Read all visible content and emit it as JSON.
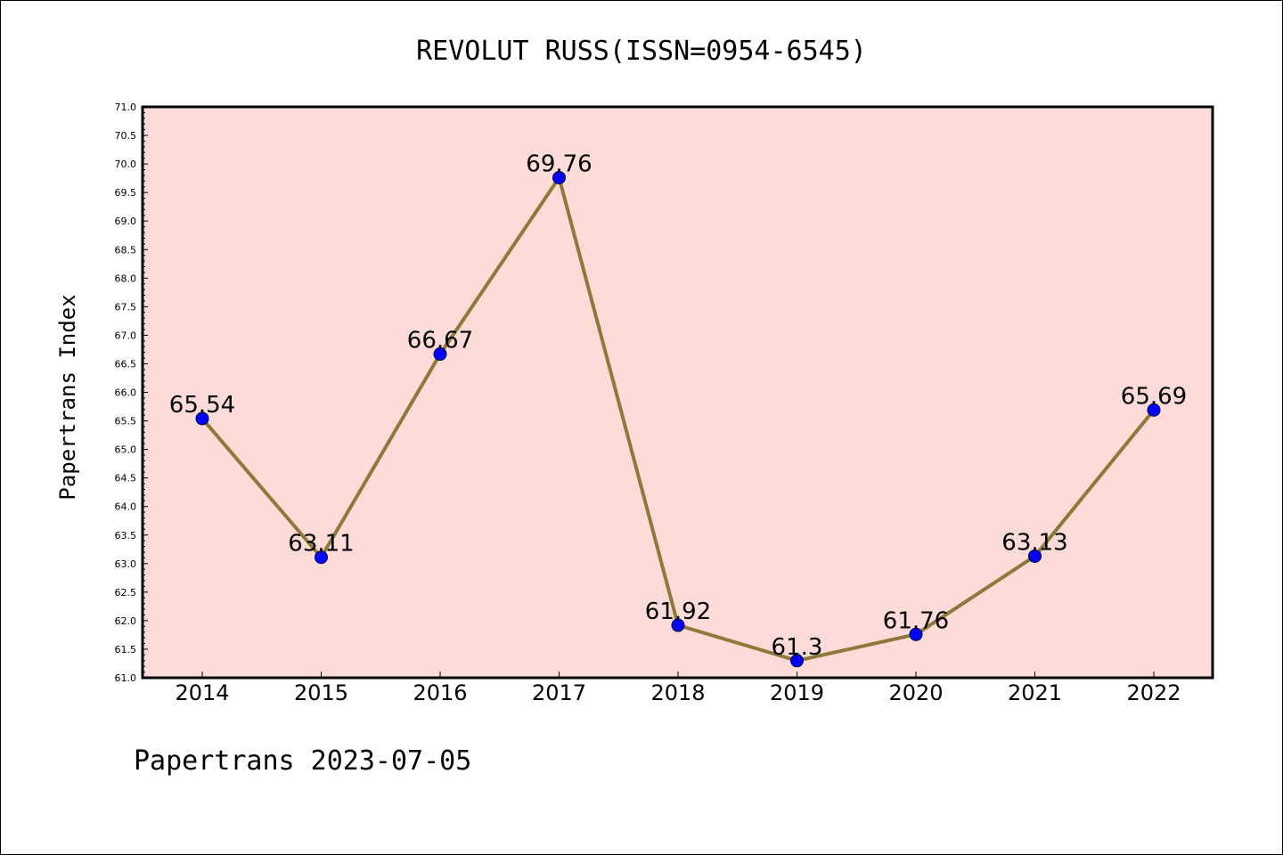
{
  "chart_data": {
    "type": "line",
    "title": "REVOLUT RUSS(ISSN=0954-6545)",
    "ylabel": "Papertrans Index",
    "xlabel": "",
    "footer": "Papertrans 2023-07-05",
    "categories": [
      "2014",
      "2015",
      "2016",
      "2017",
      "2018",
      "2019",
      "2020",
      "2021",
      "2022"
    ],
    "values": [
      65.54,
      63.11,
      66.67,
      69.76,
      61.92,
      61.3,
      61.76,
      63.13,
      65.69
    ],
    "data_labels": [
      "65.54",
      "63.11",
      "66.67",
      "69.76",
      "61.92",
      "61.3",
      "61.76",
      "63.13",
      "65.69"
    ],
    "ylim": [
      61.0,
      71.0
    ],
    "yticks": [
      "61.0",
      "61.5",
      "62.0",
      "62.5",
      "63.0",
      "63.5",
      "64.0",
      "64.5",
      "65.0",
      "65.5",
      "66.0",
      "66.5",
      "67.0",
      "67.5",
      "68.0",
      "68.5",
      "69.0",
      "69.5",
      "70.0",
      "70.5",
      "71.0"
    ],
    "grid": false,
    "colors": {
      "plot_background": "#fddbd8",
      "line": "#8b7a3a",
      "marker": "#0000ff"
    }
  }
}
